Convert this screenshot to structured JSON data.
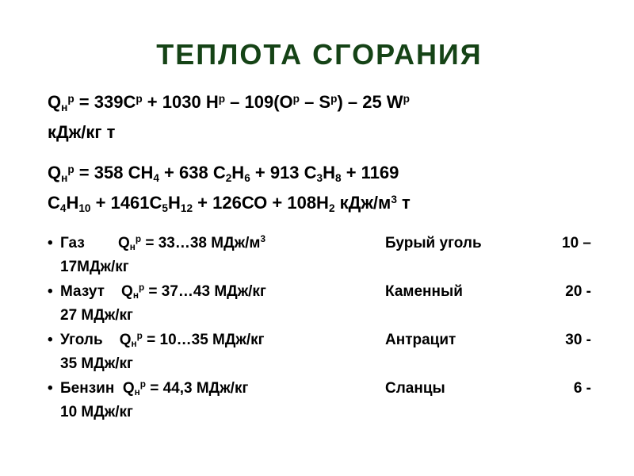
{
  "title_color": "#154316",
  "body_color": "#000000",
  "background": "#ffffff",
  "title": "ТЕПЛОТА  СГОРАНИЯ",
  "formula1_line1": "Q<span class='sub'>н</span><span class='sup'>р</span> = 339C<span class='sup'>р</span> + 1030 H<span class='sup'>р</span> – 109(O<span class='sup'>р</span> – S<span class='sup'>р</span>) – 25 W<span class='sup'>р</span>",
  "formula1_line2": "кДж/кг т",
  "formula2_line1": "Q<span class='sub'>н</span><span class='sup'>р</span> = 358 СН<span class='sub'>4</span> +  638 С<span class='sub'>2</span>Н<span class='sub'>6</span>  + 913 С<span class='sub'>3</span>Н<span class='sub'>8</span> + 1169",
  "formula2_line2": "С<span class='sub'>4</span>Н<span class='sub'>10</span>  + 1461С<span class='sub'>5</span>Н<span class='sub'>12</span> + 126СО + 108Н<span class='sub'>2</span>  кДж/м<span class='sup'>3</span> т",
  "fuels": [
    {
      "left": "Газ&nbsp;&nbsp;&nbsp;&nbsp;&nbsp;&nbsp;&nbsp; Q<span class='sub'>н</span><span class='sup'>р</span> = 33…38 МДж/м<span class='sup'>3</span>",
      "right_name": "Бурый уголь",
      "right_val": "10 –",
      "spill": "17МДж/кг"
    },
    {
      "left": "Мазут&nbsp;&nbsp;&nbsp; Q<span class='sub'>н</span><span class='sup'>р</span> = 37…43 МДж/кг",
      "right_name": "Каменный",
      "right_val": "20 -",
      "spill": "27 МДж/кг"
    },
    {
      "left": "Уголь&nbsp;&nbsp;&nbsp; Q<span class='sub'>н</span><span class='sup'>р</span> = 10…35 МДж/кг",
      "right_name": "Антрацит",
      "right_val": "30 -",
      "spill": "35 МДж/кг"
    },
    {
      "left": "Бензин&nbsp; Q<span class='sub'>н</span><span class='sup'>р</span> = 44,3 МДж/кг",
      "right_name": "Сланцы",
      "right_val": "6 -",
      "spill": "10 МДж/кг"
    }
  ]
}
